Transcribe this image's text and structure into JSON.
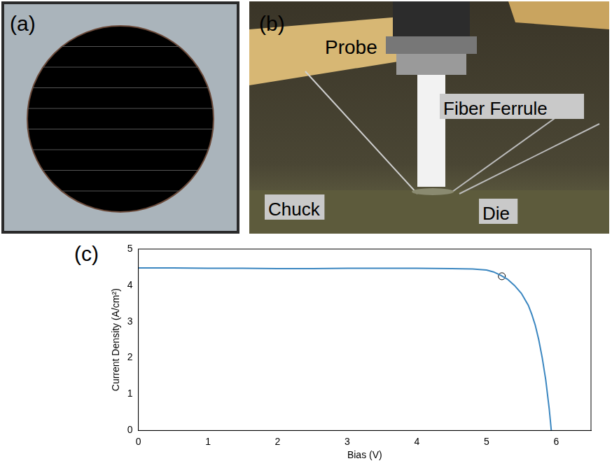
{
  "figure": {
    "panels": [
      {
        "label": "(a)"
      },
      {
        "label": "(b)",
        "labels": [
          "Probe",
          "Fiber Ferrule",
          "Chuck",
          "Die"
        ]
      }
    ],
    "chart_panel_label": "(c)"
  },
  "chart_data": {
    "type": "line",
    "x_label": "Bias (V)",
    "y_label": "Current Density (A/cm²)",
    "series": [
      {
        "color": "#3a86c0",
        "marker": "none",
        "line_style": "solid",
        "x": [
          0,
          0.5,
          1,
          1.5,
          2,
          2.5,
          3,
          3.5,
          4,
          4.5,
          4.8,
          5.0,
          5.1,
          5.2,
          5.3,
          5.4,
          5.5,
          5.6,
          5.65,
          5.7,
          5.75,
          5.8,
          5.85,
          5.9,
          5.93
        ],
        "values": [
          4.48,
          4.48,
          4.47,
          4.47,
          4.46,
          4.46,
          4.47,
          4.47,
          4.47,
          4.46,
          4.45,
          4.42,
          4.37,
          4.28,
          4.17,
          4.0,
          3.78,
          3.45,
          3.2,
          2.9,
          2.5,
          2.0,
          1.4,
          0.6,
          0
        ]
      },
      {
        "color": "#000000",
        "marker": "circle",
        "line_style": "none",
        "x": [
          5.22
        ],
        "values": [
          4.25
        ]
      }
    ],
    "xlim": [
      0,
      6.5
    ],
    "xticks": [
      0,
      1,
      2,
      3,
      4,
      5,
      6
    ],
    "ylim": [
      0,
      5
    ],
    "yticks": [
      0,
      1,
      2,
      3,
      4,
      5
    ],
    "grid": false
  }
}
